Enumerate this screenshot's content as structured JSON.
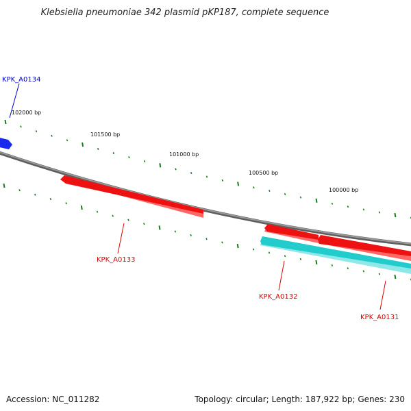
{
  "title": "Klebsiella pneumoniae 342 plasmid pKP187, complete sequence",
  "accession": "Accession: NC_011282",
  "summary": "Topology: circular; Length: 187,922 bp; Genes: 230",
  "colors": {
    "backbone": "#808080",
    "tick": "#1a7a1a",
    "forward_gene": "#ee1111",
    "reverse_gene": "#22cccc",
    "label_forward": "#dd0000",
    "label_other": "#0000cc"
  },
  "position_labels": [
    "102000 bp",
    "101500 bp",
    "101000 bp",
    "100500 bp",
    "100000 bp"
  ],
  "genes": [
    {
      "name": "KPK_A0134",
      "label_color": "#0000cc",
      "color": "#1a2aee"
    },
    {
      "name": "KPK_A0133",
      "label_color": "#dd0000",
      "color": "#ee1111"
    },
    {
      "name": "KPK_A0132",
      "label_color": "#dd0000",
      "color": "#22cccc"
    },
    {
      "name": "KPK_A0131",
      "label_color": "#dd0000",
      "color": "#ee1111"
    }
  ]
}
